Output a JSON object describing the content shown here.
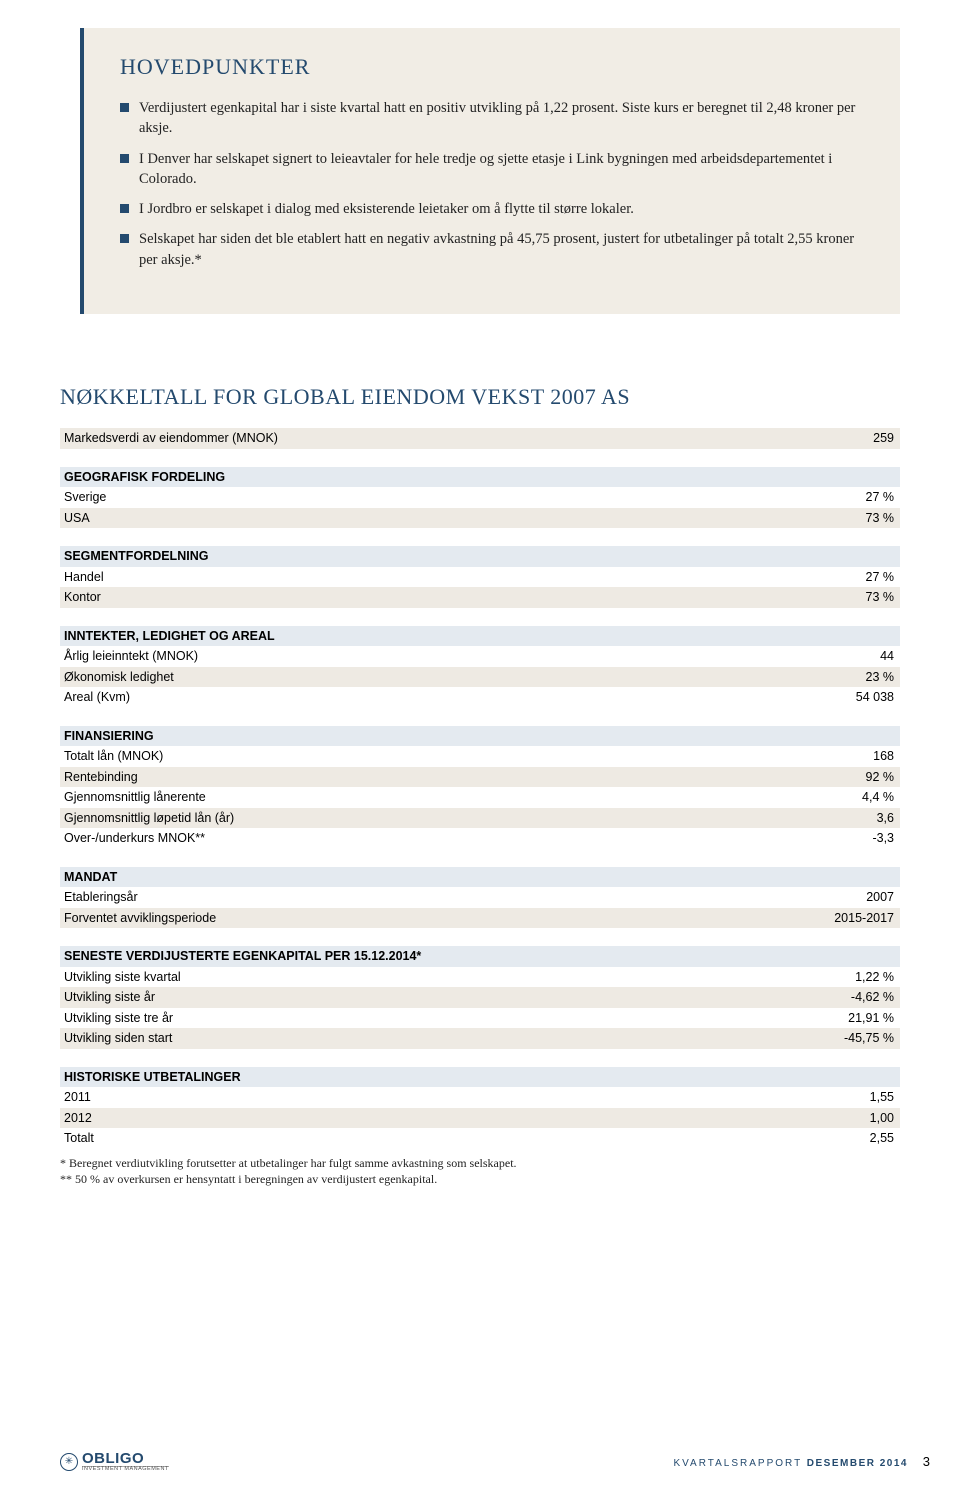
{
  "hovedpunkter": {
    "title": "HOVEDPUNKTER",
    "bullets": [
      "Verdijustert egenkapital har i siste kvartal hatt en positiv utvikling på 1,22 prosent. Siste kurs er beregnet til 2,48 kroner per aksje.",
      "I Denver har selskapet signert to leieavtaler for hele tredje og sjette etasje i Link bygningen med arbeidsdepartementet i Colorado.",
      "I Jordbro er selskapet i dialog med eksisterende leietaker om å flytte til større lokaler.",
      "Selskapet har siden det ble etablert hatt en negativ avkastning på 45,75 prosent, justert for utbetalinger på totalt 2,55 kroner per aksje.*"
    ]
  },
  "section_title": "NØKKELTALL FOR GLOBAL EIENDOM VEKST 2007 AS",
  "rows": [
    {
      "type": "data",
      "shade": true,
      "label": "Markedsverdi av eiendommer (MNOK)",
      "value": "259"
    },
    {
      "type": "blank"
    },
    {
      "type": "header",
      "label": "GEOGRAFISK FORDELING"
    },
    {
      "type": "data",
      "shade": false,
      "label": "Sverige",
      "value": "27 %"
    },
    {
      "type": "data",
      "shade": true,
      "label": "USA",
      "value": "73 %"
    },
    {
      "type": "blank"
    },
    {
      "type": "header",
      "label": "SEGMENTFORDELNING"
    },
    {
      "type": "data",
      "shade": false,
      "label": "Handel",
      "value": "27 %"
    },
    {
      "type": "data",
      "shade": true,
      "label": "Kontor",
      "value": "73 %"
    },
    {
      "type": "blank"
    },
    {
      "type": "header",
      "label": "INNTEKTER, LEDIGHET OG AREAL"
    },
    {
      "type": "data",
      "shade": false,
      "label": "Årlig leieinntekt (MNOK)",
      "value": "44"
    },
    {
      "type": "data",
      "shade": true,
      "label": "Økonomisk ledighet",
      "value": "23 %"
    },
    {
      "type": "data",
      "shade": false,
      "label": "Areal (Kvm)",
      "value": "54 038"
    },
    {
      "type": "blank"
    },
    {
      "type": "header",
      "label": "FINANSIERING"
    },
    {
      "type": "data",
      "shade": false,
      "label": "Totalt lån (MNOK)",
      "value": "168"
    },
    {
      "type": "data",
      "shade": true,
      "label": "Rentebinding",
      "value": "92 %"
    },
    {
      "type": "data",
      "shade": false,
      "label": "Gjennomsnittlig lånerente",
      "value": "4,4 %"
    },
    {
      "type": "data",
      "shade": true,
      "label": "Gjennomsnittlig løpetid lån (år)",
      "value": "3,6"
    },
    {
      "type": "data",
      "shade": false,
      "label": "Over-/underkurs MNOK**",
      "value": "-3,3"
    },
    {
      "type": "blank"
    },
    {
      "type": "header",
      "label": "MANDAT"
    },
    {
      "type": "data",
      "shade": false,
      "label": "Etableringsår",
      "value": "2007"
    },
    {
      "type": "data",
      "shade": true,
      "label": "Forventet avviklingsperiode",
      "value": "2015-2017"
    },
    {
      "type": "blank"
    },
    {
      "type": "header",
      "label": "SENESTE VERDIJUSTERTE EGENKAPITAL PER 15.12.2014*"
    },
    {
      "type": "data",
      "shade": false,
      "label": "Utvikling siste kvartal",
      "value": "1,22 %"
    },
    {
      "type": "data",
      "shade": true,
      "label": "Utvikling siste år",
      "value": "-4,62 %"
    },
    {
      "type": "data",
      "shade": false,
      "label": "Utvikling siste tre år",
      "value": "21,91 %"
    },
    {
      "type": "data",
      "shade": true,
      "label": "Utvikling siden start",
      "value": "-45,75 %"
    },
    {
      "type": "blank"
    },
    {
      "type": "header",
      "label": "HISTORISKE UTBETALINGER"
    },
    {
      "type": "data",
      "shade": false,
      "label": "2011",
      "value": "1,55"
    },
    {
      "type": "data",
      "shade": true,
      "label": "2012",
      "value": "1,00"
    },
    {
      "type": "data",
      "shade": false,
      "label": "Totalt",
      "value": "2,55"
    }
  ],
  "footnotes": [
    "*   Beregnet verdiutvikling forutsetter at utbetalinger har fulgt samme avkastning som selskapet.",
    "** 50 % av overkursen er hensyntatt i beregningen av verdijustert egenkapital."
  ],
  "footer": {
    "logo_text": "OBLIGO",
    "logo_sub": "INVESTMENT MANAGEMENT",
    "report_label": "KVARTALSRAPPORT",
    "report_period": "DESEMBER 2014",
    "page": "3"
  },
  "colors": {
    "brand": "#244a6e",
    "box_bg": "#f1ede5",
    "row_shade": "#eeeae3",
    "header_bg": "#e4eaf0"
  }
}
